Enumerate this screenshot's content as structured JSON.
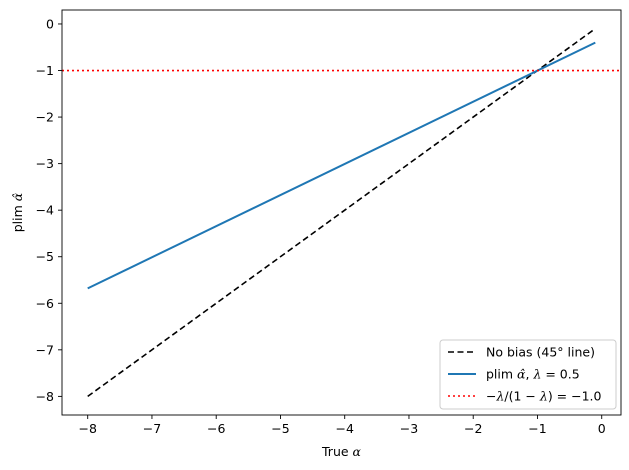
{
  "chart_data": {
    "type": "line",
    "title": "",
    "xlabel": {
      "prefix": "True ",
      "symbol": "α"
    },
    "ylabel": {
      "prefix": "plim ",
      "symbol": "α̂"
    },
    "xlim": [
      -8.4,
      0.3
    ],
    "ylim": [
      -8.4,
      0.3
    ],
    "xticks": [
      -8,
      -7,
      -6,
      -5,
      -4,
      -3,
      -2,
      -1,
      0
    ],
    "yticks": [
      -8,
      -7,
      -6,
      -5,
      -4,
      -3,
      -2,
      -1,
      0
    ],
    "grid": false,
    "legend_position": "bottom-right",
    "series": [
      {
        "name": "No bias (45° line)",
        "style": "dashed",
        "color": "#000000",
        "x": [
          -8,
          -0.1
        ],
        "y": [
          -8,
          -0.1
        ]
      },
      {
        "name": "plim α̂, λ = 0.5",
        "style": "solid",
        "color": "#1f77b4",
        "x": [
          -8,
          -0.1
        ],
        "y": [
          -5.68,
          -0.4
        ]
      },
      {
        "name": "−λ/(1 − λ) = −1.0",
        "style": "dotted",
        "color": "#ff0000",
        "type": "hline",
        "y": -1.0
      }
    ],
    "legend": [
      {
        "series": 0,
        "parts": [
          {
            "t": "No bias (45° line)",
            "it": false
          }
        ]
      },
      {
        "series": 1,
        "parts": [
          {
            "t": "plim ",
            "it": false
          },
          {
            "t": "α̂",
            "it": true
          },
          {
            "t": ", ",
            "it": false
          },
          {
            "t": "λ",
            "it": true
          },
          {
            "t": " = 0.5",
            "it": false
          }
        ]
      },
      {
        "series": 2,
        "parts": [
          {
            "t": "−",
            "it": false
          },
          {
            "t": "λ",
            "it": true
          },
          {
            "t": "/(1 − ",
            "it": false
          },
          {
            "t": "λ",
            "it": true
          },
          {
            "t": ") = −1.0",
            "it": false
          }
        ]
      }
    ]
  }
}
